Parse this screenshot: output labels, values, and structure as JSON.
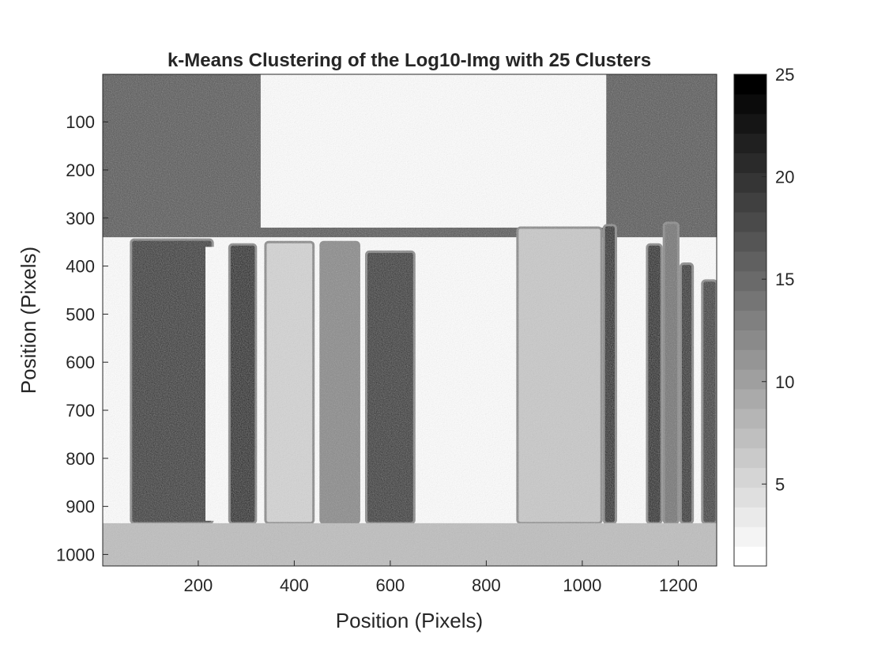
{
  "chart_data": {
    "type": "heatmap",
    "title": "k-Means Clustering of the Log10-Img with 25 Clusters",
    "xlabel": "Position (Pixels)",
    "ylabel": "Position (Pixels)",
    "xlim": [
      1,
      1280
    ],
    "ylim": [
      1,
      1024
    ],
    "y_direction": "reverse",
    "x_ticks": [
      200,
      400,
      600,
      800,
      1000,
      1200
    ],
    "x_tick_labels": [
      "200",
      "400",
      "600",
      "800",
      "1000",
      "1200"
    ],
    "y_ticks": [
      100,
      200,
      300,
      400,
      500,
      600,
      700,
      800,
      900,
      1000
    ],
    "y_tick_labels": [
      "100",
      "200",
      "300",
      "400",
      "500",
      "600",
      "700",
      "800",
      "900",
      "1000"
    ],
    "colormap": "gray reversed (1 = white, 25 = black)",
    "colorbar": {
      "range": [
        1,
        25
      ],
      "levels": 25,
      "ticks": [
        5,
        10,
        15,
        20,
        25
      ],
      "tick_labels": [
        "5",
        "10",
        "15",
        "20",
        "25"
      ],
      "min_color": "#ffffff",
      "max_color": "#000000"
    },
    "grid": false,
    "regions": [
      {
        "label": "background-left",
        "x": [
          1,
          1280
        ],
        "y": [
          1,
          340
        ],
        "cluster": 17
      },
      {
        "label": "bright-top-center",
        "x": [
          330,
          1050
        ],
        "y": [
          1,
          320
        ],
        "cluster": 1
      },
      {
        "label": "strip-1",
        "x": [
          60,
          230
        ],
        "y": [
          345,
          935
        ],
        "cluster": 21
      },
      {
        "label": "gap-1",
        "x": [
          215,
          255
        ],
        "y": [
          360,
          930
        ],
        "cluster": 1
      },
      {
        "label": "strip-2",
        "x": [
          265,
          320
        ],
        "y": [
          355,
          935
        ],
        "cluster": 25
      },
      {
        "label": "strip-3",
        "x": [
          340,
          440
        ],
        "y": [
          350,
          935
        ],
        "cluster": 5
      },
      {
        "label": "strip-4",
        "x": [
          455,
          535
        ],
        "y": [
          350,
          935
        ],
        "cluster": 12
      },
      {
        "label": "strip-5",
        "x": [
          550,
          650
        ],
        "y": [
          370,
          935
        ],
        "cluster": 21
      },
      {
        "label": "center-bright",
        "x": [
          660,
          860
        ],
        "y": [
          355,
          925
        ],
        "cluster": 1
      },
      {
        "label": "strip-7",
        "x": [
          865,
          1040
        ],
        "y": [
          320,
          935
        ],
        "cluster": 6
      },
      {
        "label": "strip-8",
        "x": [
          1045,
          1070
        ],
        "y": [
          315,
          935
        ],
        "cluster": 23
      },
      {
        "label": "strip-9",
        "x": [
          1135,
          1165
        ],
        "y": [
          355,
          935
        ],
        "cluster": 25
      },
      {
        "label": "strip-10",
        "x": [
          1170,
          1200
        ],
        "y": [
          310,
          935
        ],
        "cluster": 14
      },
      {
        "label": "strip-11",
        "x": [
          1205,
          1230
        ],
        "y": [
          395,
          935
        ],
        "cluster": 22
      },
      {
        "label": "strip-12",
        "x": [
          1250,
          1280
        ],
        "y": [
          430,
          935
        ],
        "cluster": 20
      },
      {
        "label": "bottom-band",
        "x": [
          1,
          1280
        ],
        "y": [
          935,
          1024
        ],
        "cluster": 7
      }
    ]
  }
}
